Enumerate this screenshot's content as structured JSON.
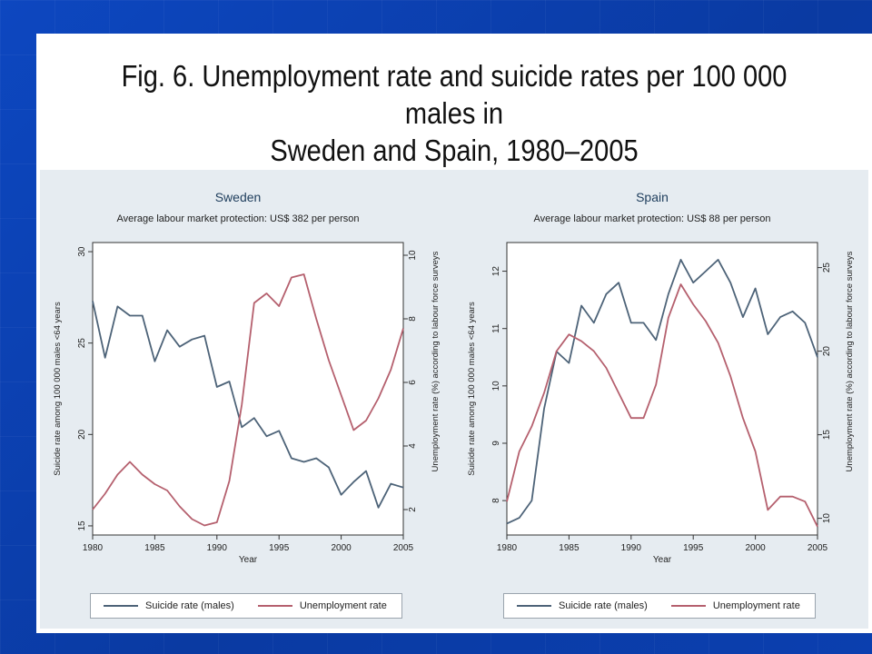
{
  "slide": {
    "title_line1": "Fig. 6. Unemployment rate and suicide rates per 100 000 males in",
    "title_line2": "Sweden and Spain, 1980–2005"
  },
  "colors": {
    "suicide": "#4d6378",
    "unemployment": "#b5606e",
    "plot_bg": "#ffffff",
    "outer_bg": "#e6ecf1",
    "slide_bg": "#0a3ea8"
  },
  "chart_data": [
    {
      "type": "line",
      "title": "Sweden",
      "subtitle": "Average labour market protection: US$ 382 per person",
      "xlabel": "Year",
      "ylabel_left": "Suicide rate among 100 000 males <64 years",
      "ylabel_right": "Unemployment rate (%) according to labour force surveys",
      "x": [
        1980,
        1981,
        1982,
        1983,
        1984,
        1985,
        1986,
        1987,
        1988,
        1989,
        1990,
        1991,
        1992,
        1993,
        1994,
        1995,
        1996,
        1997,
        1998,
        1999,
        2000,
        2001,
        2002,
        2003,
        2004,
        2005
      ],
      "x_ticks": [
        1980,
        1985,
        1990,
        1995,
        2000,
        2005
      ],
      "xlim": [
        1980,
        2005
      ],
      "y_left": {
        "lim": [
          14.5,
          30.5
        ],
        "ticks": [
          15,
          20,
          25,
          30
        ]
      },
      "y_right": {
        "lim": [
          1.2,
          10.4
        ],
        "ticks": [
          2,
          4,
          6,
          8,
          10
        ]
      },
      "series": [
        {
          "name": "Suicide rate (males)",
          "axis": "left",
          "values": [
            27.3,
            24.2,
            27.0,
            26.5,
            26.5,
            24.0,
            25.7,
            24.8,
            25.2,
            25.4,
            22.6,
            22.9,
            20.4,
            20.9,
            19.9,
            20.2,
            18.7,
            18.5,
            18.7,
            18.2,
            16.7,
            17.4,
            18.0,
            16.0,
            17.3,
            17.1
          ]
        },
        {
          "name": "Unemployment rate",
          "axis": "right",
          "values": [
            2.0,
            2.5,
            3.1,
            3.5,
            3.1,
            2.8,
            2.6,
            2.1,
            1.7,
            1.5,
            1.6,
            2.9,
            5.3,
            8.5,
            8.8,
            8.4,
            9.3,
            9.4,
            8.0,
            6.7,
            5.6,
            4.5,
            4.8,
            5.5,
            6.4,
            7.7
          ]
        }
      ],
      "legend": "bottom"
    },
    {
      "type": "line",
      "title": "Spain",
      "subtitle": "Average labour market protection: US$ 88 per person",
      "xlabel": "Year",
      "ylabel_left": "Suicide rate among 100 000 males <64 years",
      "ylabel_right": "Unemployment rate (%) according to labour force surveys",
      "x": [
        1980,
        1981,
        1982,
        1983,
        1984,
        1985,
        1986,
        1987,
        1988,
        1989,
        1990,
        1991,
        1992,
        1993,
        1994,
        1995,
        1996,
        1997,
        1998,
        1999,
        2000,
        2001,
        2002,
        2003,
        2004,
        2005
      ],
      "x_ticks": [
        1980,
        1985,
        1990,
        1995,
        2000,
        2005
      ],
      "xlim": [
        1980,
        2005
      ],
      "y_left": {
        "lim": [
          7.4,
          12.5
        ],
        "ticks": [
          8,
          9,
          10,
          11,
          12
        ]
      },
      "y_right": {
        "lim": [
          9.0,
          26.5
        ],
        "ticks": [
          10,
          15,
          20,
          25
        ]
      },
      "series": [
        {
          "name": "Suicide rate (males)",
          "axis": "left",
          "values": [
            7.6,
            7.7,
            8.0,
            9.6,
            10.6,
            10.4,
            11.4,
            11.1,
            11.6,
            11.8,
            11.1,
            11.1,
            10.8,
            11.6,
            12.2,
            11.8,
            12.0,
            12.2,
            11.8,
            11.2,
            11.7,
            10.9,
            11.2,
            11.3,
            11.1,
            10.5
          ]
        },
        {
          "name": "Unemployment rate",
          "axis": "right",
          "values": [
            11.0,
            14.0,
            15.5,
            17.5,
            20.0,
            21.0,
            20.6,
            20.0,
            19.0,
            17.5,
            16.0,
            16.0,
            18.0,
            22.0,
            24.0,
            22.8,
            21.8,
            20.5,
            18.5,
            16.0,
            14.0,
            10.5,
            11.3,
            11.3,
            11.0,
            9.5
          ]
        }
      ],
      "legend": "bottom"
    }
  ]
}
